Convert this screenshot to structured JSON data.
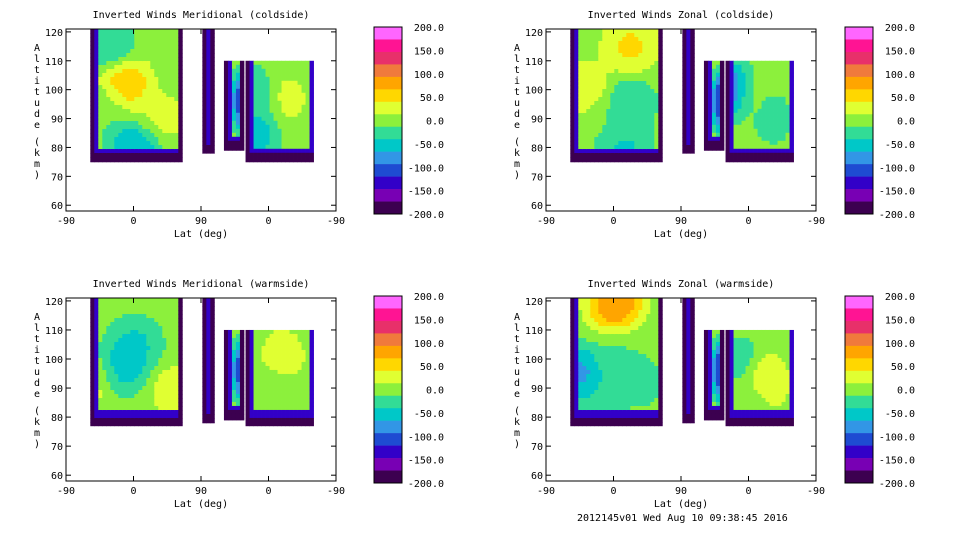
{
  "footer": "2012145v01 Wed Aug 10 09:38:45 2016",
  "colorbar": {
    "labels": [
      "200.0",
      "150.0",
      "100.0",
      "50.0",
      "0.0",
      "-50.0",
      "-100.0",
      "-150.0",
      "-200.0"
    ],
    "colors": [
      "#ff66ff",
      "#ff1493",
      "#e8306a",
      "#f07a3c",
      "#ffa500",
      "#ffd700",
      "#e0ff32",
      "#8cf03c",
      "#32dc96",
      "#00c8c8",
      "#3296e6",
      "#1e4bd2",
      "#3200c8",
      "#7800b4",
      "#3c0050"
    ]
  },
  "chart_data": [
    {
      "type": "heatmap",
      "title": "Inverted Winds Meridional (coldside)",
      "xlabel": "Lat (deg)",
      "ylabel": "Altitude (km)",
      "x_tick_labels": [
        "-90",
        "0",
        "90",
        "0",
        "-90"
      ],
      "y_ticks": [
        60,
        70,
        80,
        90,
        100,
        110,
        120
      ],
      "ylim": [
        58,
        121
      ],
      "clim": [
        -200,
        200
      ],
      "regions": [
        {
          "id": "A",
          "alt_range": [
            75,
            121
          ],
          "blobs": [
            {
              "alt": 102,
              "w": -0.25,
              "v": 85
            },
            {
              "alt": 95,
              "w": -0.75,
              "v": -20
            },
            {
              "alt": 115,
              "w": -0.6,
              "v": -55
            },
            {
              "alt": 80,
              "w": 0.0,
              "v": -90
            },
            {
              "alt": 90,
              "w": 0.6,
              "v": 30
            }
          ]
        },
        {
          "id": "B",
          "alt_range": [
            78,
            121
          ],
          "blobs": [
            {
              "alt": 100,
              "w": 0.5,
              "v": 120
            }
          ]
        },
        {
          "id": "C",
          "alt_range": [
            79,
            110
          ],
          "blobs": [
            {
              "alt": 96,
              "w": 0.5,
              "v": -140
            }
          ]
        },
        {
          "id": "D",
          "alt_range": [
            75,
            110
          ],
          "blobs": [
            {
              "alt": 97,
              "w": 0.3,
              "v": 25
            },
            {
              "alt": 85,
              "w": -0.6,
              "v": -65
            },
            {
              "alt": 100,
              "w": -0.8,
              "v": -40
            }
          ]
        }
      ]
    },
    {
      "type": "heatmap",
      "title": "Inverted Winds Zonal (coldside)",
      "xlabel": "Lat (deg)",
      "ylabel": "Altitude (km)",
      "x_tick_labels": [
        "-90",
        "0",
        "90",
        "0",
        "-90"
      ],
      "y_ticks": [
        60,
        70,
        80,
        90,
        100,
        110,
        120
      ],
      "ylim": [
        58,
        121
      ],
      "clim": [
        -200,
        200
      ],
      "regions": [
        {
          "id": "A",
          "alt_range": [
            75,
            121
          ],
          "blobs": [
            {
              "alt": 100,
              "w": -0.65,
              "v": 50
            },
            {
              "alt": 115,
              "w": 0.35,
              "v": 60
            },
            {
              "alt": 95,
              "w": 0.3,
              "v": -55
            },
            {
              "alt": 90,
              "w": -0.2,
              "v": -10
            },
            {
              "alt": 80,
              "w": 0.2,
              "v": -60
            }
          ]
        },
        {
          "id": "B",
          "alt_range": [
            78,
            121
          ],
          "blobs": [
            {
              "alt": 100,
              "w": 0.5,
              "v": -150
            }
          ]
        },
        {
          "id": "C",
          "alt_range": [
            79,
            110
          ],
          "blobs": [
            {
              "alt": 96,
              "w": 0.5,
              "v": -160
            }
          ]
        },
        {
          "id": "D",
          "alt_range": [
            75,
            110
          ],
          "blobs": [
            {
              "alt": 98,
              "w": -0.2,
              "v": -5
            },
            {
              "alt": 90,
              "w": 0.4,
              "v": -35
            },
            {
              "alt": 100,
              "w": -0.8,
              "v": -120
            }
          ]
        }
      ]
    },
    {
      "type": "heatmap",
      "title": "Inverted Winds Meridional (warmside)",
      "xlabel": "Lat (deg)",
      "ylabel": "Altitude (km)",
      "x_tick_labels": [
        "-90",
        "0",
        "90",
        "0",
        "-90"
      ],
      "y_ticks": [
        60,
        70,
        80,
        90,
        100,
        110,
        120
      ],
      "ylim": [
        58,
        121
      ],
      "clim": [
        -200,
        200
      ],
      "regions": [
        {
          "id": "A",
          "alt_range": [
            77,
            121
          ],
          "blobs": [
            {
              "alt": 92,
              "w": -0.9,
              "v": 35
            },
            {
              "alt": 88,
              "w": 0.85,
              "v": 45
            },
            {
              "alt": 105,
              "w": 0.0,
              "v": -60
            },
            {
              "alt": 96,
              "w": -0.3,
              "v": -80
            },
            {
              "alt": 83,
              "w": 0.0,
              "v": -10
            }
          ]
        },
        {
          "id": "B",
          "alt_range": [
            78,
            121
          ],
          "blobs": [
            {
              "alt": 100,
              "w": 0.5,
              "v": -160
            }
          ]
        },
        {
          "id": "C",
          "alt_range": [
            79,
            110
          ],
          "blobs": [
            {
              "alt": 96,
              "w": 0.5,
              "v": -140
            }
          ]
        },
        {
          "id": "D",
          "alt_range": [
            77,
            110
          ],
          "blobs": [
            {
              "alt": 100,
              "w": 0.1,
              "v": 50
            },
            {
              "alt": 90,
              "w": -0.1,
              "v": -20
            },
            {
              "alt": 85,
              "w": 0.5,
              "v": 0
            }
          ]
        }
      ]
    },
    {
      "type": "heatmap",
      "title": "Inverted Winds Zonal (warmside)",
      "xlabel": "Lat (deg)",
      "ylabel": "Altitude (km)",
      "x_tick_labels": [
        "-90",
        "0",
        "90",
        "0",
        "-90"
      ],
      "y_ticks": [
        60,
        70,
        80,
        90,
        100,
        110,
        120
      ],
      "ylim": [
        58,
        121
      ],
      "clim": [
        -200,
        200
      ],
      "regions": [
        {
          "id": "A",
          "alt_range": [
            77,
            121
          ],
          "blobs": [
            {
              "alt": 119,
              "w": 0.0,
              "v": 120
            },
            {
              "alt": 95,
              "w": -0.8,
              "v": -100
            },
            {
              "alt": 100,
              "w": 0.1,
              "v": -20
            },
            {
              "alt": 92,
              "w": 0.5,
              "v": -35
            },
            {
              "alt": 82,
              "w": -0.5,
              "v": -40
            }
          ]
        },
        {
          "id": "B",
          "alt_range": [
            78,
            121
          ],
          "blobs": [
            {
              "alt": 100,
              "w": 0.5,
              "v": -150
            }
          ]
        },
        {
          "id": "C",
          "alt_range": [
            79,
            110
          ],
          "blobs": [
            {
              "alt": 96,
              "w": 0.5,
              "v": -160
            }
          ]
        },
        {
          "id": "D",
          "alt_range": [
            77,
            110
          ],
          "blobs": [
            {
              "alt": 92,
              "w": 0.2,
              "v": 60
            },
            {
              "alt": 100,
              "w": -0.5,
              "v": -30
            },
            {
              "alt": 85,
              "w": -0.2,
              "v": -20
            }
          ]
        }
      ]
    }
  ]
}
